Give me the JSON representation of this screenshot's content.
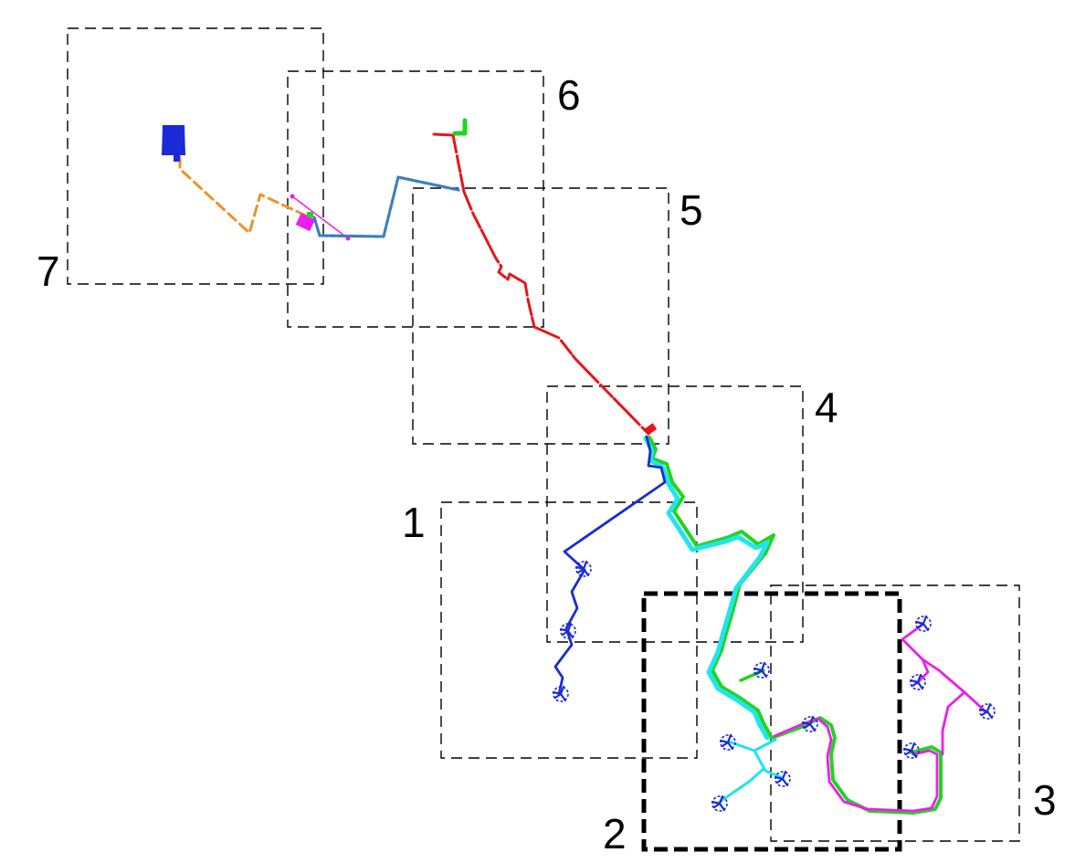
{
  "regions": [
    {
      "id": "1",
      "label": "1"
    },
    {
      "id": "2",
      "label": "2"
    },
    {
      "id": "3",
      "label": "3"
    },
    {
      "id": "4",
      "label": "4"
    },
    {
      "id": "5",
      "label": "5"
    },
    {
      "id": "6",
      "label": "6"
    },
    {
      "id": "7",
      "label": "7"
    }
  ],
  "route_colors": {
    "red": "#e8141a",
    "green": "#22d41f",
    "cyan": "#20e4ee",
    "blue": "#1a2bd6",
    "magenta": "#ee1cee",
    "steelblue": "#3a7fc0",
    "orange": "#f0902a"
  },
  "icons": {
    "drone": "quadrotor-icon"
  }
}
